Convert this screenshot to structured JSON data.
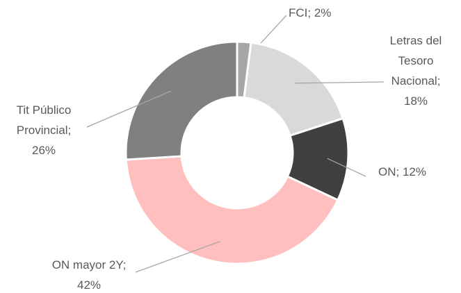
{
  "chart_data": {
    "type": "donut",
    "values": [
      2,
      18,
      12,
      42,
      26
    ],
    "value_labels": [
      "FCI; 2%",
      "Letras del Tesoro Nacional; 18%",
      "ON; 12%",
      "ON mayor 2Y; 42%",
      "Tit Público Provincial; 26%"
    ],
    "colors": [
      "#a6a6a6",
      "#d9d9d9",
      "#404040",
      "#ffbfbf",
      "#808080"
    ]
  }
}
